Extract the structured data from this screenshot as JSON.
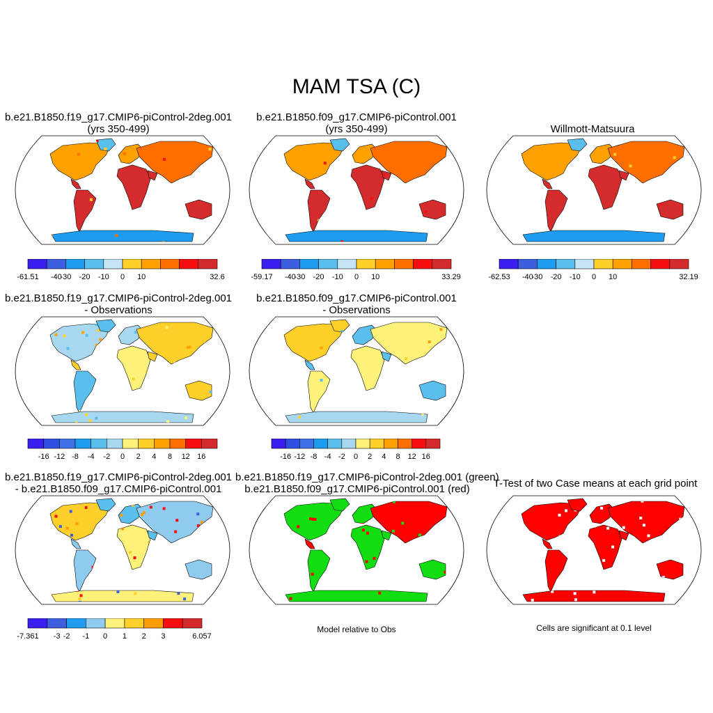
{
  "title": "MAM TSA (C)",
  "chart_data": [
    {
      "type": "heatmap",
      "title": "b.e21.B1850.f19_g17.CMIP6-piControl-2deg.001",
      "subtitle": "(yrs 350-499)",
      "colorbar": {
        "min_label": "-61.51",
        "max_label": "32.6",
        "ticks": [
          "-40",
          "-30",
          "-20",
          "-10",
          "0",
          "10"
        ],
        "colors": [
          "#3b1ff0",
          "#3e5ee0",
          "#1e9df0",
          "#5bbfee",
          "#c5e4f5",
          "#ffd02a",
          "#ffa100",
          "#ff6f00",
          "#f70f10",
          "#d42c2c"
        ]
      }
    },
    {
      "type": "heatmap",
      "title": "b.e21.B1850.f09_g17.CMIP6-piControl.001",
      "subtitle": "(yrs 350-499)",
      "colorbar": {
        "min_label": "-59.17",
        "max_label": "33.29",
        "ticks": [
          "-40",
          "-30",
          "-20",
          "-10",
          "0",
          "10"
        ],
        "colors": [
          "#3b1ff0",
          "#3e5ee0",
          "#1e9df0",
          "#5bbfee",
          "#c5e4f5",
          "#ffd02a",
          "#ffa100",
          "#ff6f00",
          "#f70f10",
          "#d42c2c"
        ]
      }
    },
    {
      "type": "heatmap",
      "title": "Willmott-Matsuura",
      "colorbar": {
        "min_label": "-62.53",
        "max_label": "32.19",
        "ticks": [
          "-40",
          "-30",
          "-20",
          "-10",
          "0",
          "10"
        ],
        "colors": [
          "#3b1ff0",
          "#3e5ee0",
          "#1e9df0",
          "#5bbfee",
          "#c5e4f5",
          "#ffd02a",
          "#ffa100",
          "#ff6f00",
          "#f70f10",
          "#d42c2c"
        ]
      }
    },
    {
      "type": "heatmap",
      "title": "b.e21.B1850.f19_g17.CMIP6-piControl-2deg.001",
      "subtitle": "- Observations",
      "colorbar": {
        "ticks": [
          "-16",
          "-12",
          "-8",
          "-4",
          "-2",
          "0",
          "2",
          "4",
          "8",
          "12",
          "16"
        ],
        "colors": [
          "#3b1ff0",
          "#2f4fe0",
          "#3e72e6",
          "#1e9df0",
          "#5bbfee",
          "#a8d8f0",
          "#fff27a",
          "#ffd02a",
          "#ffa100",
          "#ff6f00",
          "#f70f10",
          "#d42c2c"
        ]
      }
    },
    {
      "type": "heatmap",
      "title": "b.e21.B1850.f09_g17.CMIP6-piControl.001",
      "subtitle": "- Observations",
      "colorbar": {
        "ticks": [
          "-16",
          "-12",
          "-8",
          "-4",
          "-2",
          "0",
          "2",
          "4",
          "8",
          "12",
          "16"
        ],
        "colors": [
          "#3b1ff0",
          "#2f4fe0",
          "#3e72e6",
          "#1e9df0",
          "#5bbfee",
          "#a8d8f0",
          "#fff27a",
          "#ffd02a",
          "#ffa100",
          "#ff6f00",
          "#f70f10",
          "#d42c2c"
        ]
      }
    },
    {
      "type": "heatmap",
      "title": "b.e21.B1850.f19_g17.CMIP6-piControl-2deg.001",
      "subtitle": "- b.e21.B1850.f09_g17.CMIP6-piControl.001",
      "colorbar": {
        "min_label": "-7.361",
        "max_label": "6.057",
        "ticks": [
          "-3",
          "-2",
          "-1",
          "0",
          "1",
          "2",
          "3"
        ],
        "colors": [
          "#3b1ff0",
          "#3e5ee0",
          "#1e9df0",
          "#8fcbee",
          "#fff27a",
          "#ffd02a",
          "#ff9d00",
          "#f70f10",
          "#d42c2c"
        ]
      }
    },
    {
      "type": "heatmap",
      "title": "b.e21.B1850.f19_g17.CMIP6-piControl-2deg.001 (green)",
      "subtitle": "b.e21.B1850.f09_g17.CMIP6-piControl.001 (red)",
      "note": "Model relative to Obs"
    },
    {
      "type": "heatmap",
      "title": "T-Test of two Case means at each grid point",
      "note": "Cells are significant at 0.1 level"
    }
  ]
}
